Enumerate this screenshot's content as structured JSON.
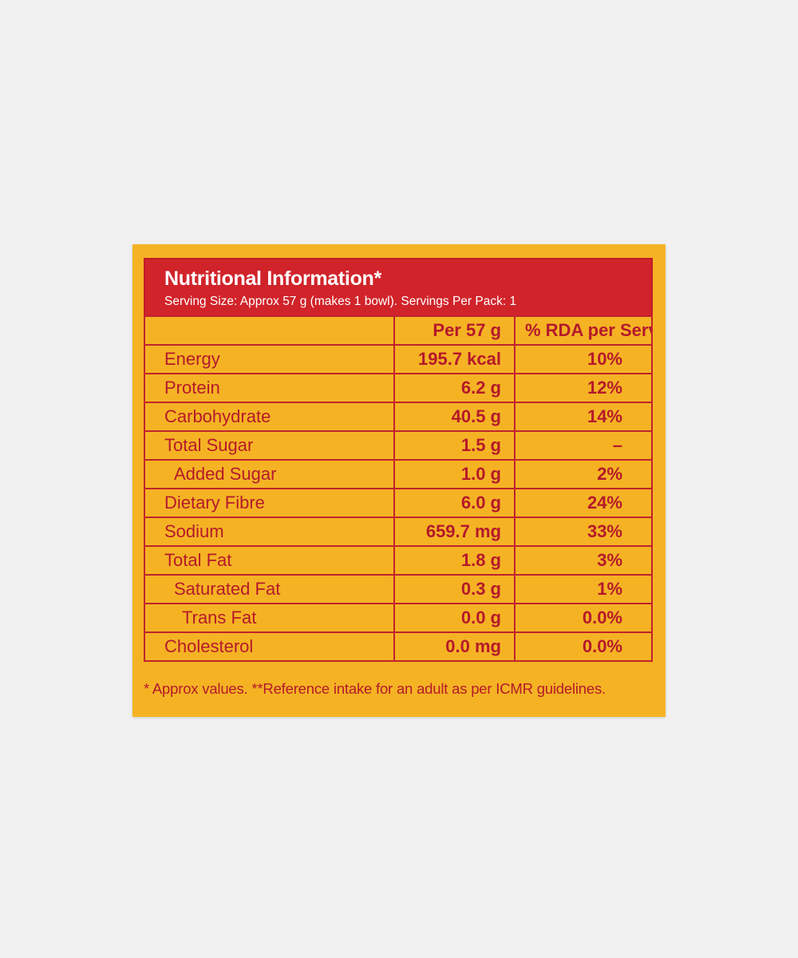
{
  "label": {
    "title": "Nutritional Information*",
    "subtitle": "Serving Size: Approx 57 g (makes 1 bowl). Servings Per Pack: 1",
    "columns": {
      "nutrient": "",
      "per_serving": "Per 57 g",
      "rda": "% RDA per Serve**"
    },
    "rows": [
      {
        "name": "Energy",
        "amount": "195.7 kcal",
        "rda": "10%"
      },
      {
        "name": "Protein",
        "amount": "6.2 g",
        "rda": "12%"
      },
      {
        "name": "Carbohydrate",
        "amount": "40.5 g",
        "rda": "14%"
      },
      {
        "name": "Total Sugar",
        "amount": "1.5 g",
        "rda": "–"
      },
      {
        "name": "Added Sugar",
        "amount": "1.0 g",
        "rda": "2%"
      },
      {
        "name": "Dietary Fibre",
        "amount": "6.0 g",
        "rda": "24%"
      },
      {
        "name": "Sodium",
        "amount": "659.7 mg",
        "rda": "33%"
      },
      {
        "name": "Total Fat",
        "amount": "1.8 g",
        "rda": "3%"
      },
      {
        "name": "Saturated Fat",
        "amount": "0.3 g",
        "rda": "1%"
      },
      {
        "name": "Trans Fat",
        "amount": "0.0 g",
        "rda": "0.0%"
      },
      {
        "name": "Cholesterol",
        "amount": "0.0 mg",
        "rda": "0.0%"
      }
    ],
    "footnote": "* Approx values. **Reference intake for an adult as per ICMR guidelines.",
    "colors": {
      "background": "#f0f0f0",
      "panel": "#f5b324",
      "header": "#d1232a",
      "text": "#b5192b",
      "header_text": "#ffffff"
    }
  }
}
